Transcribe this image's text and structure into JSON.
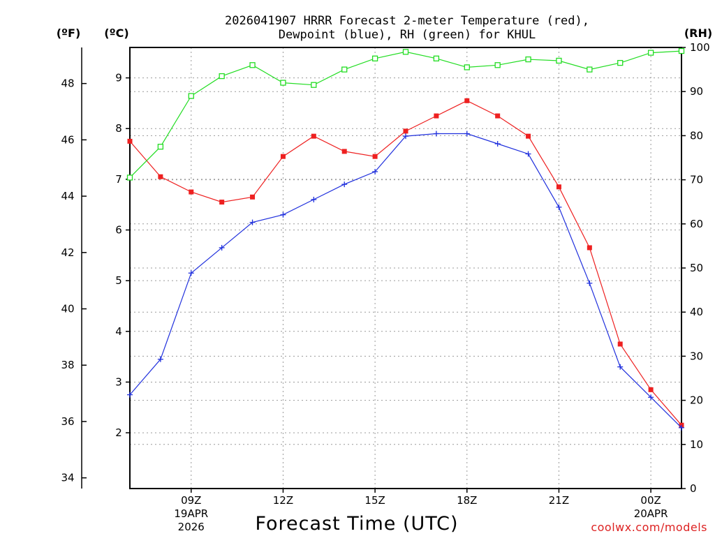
{
  "chart_data": {
    "type": "line",
    "title_line1": "2026041907 HRRR Forecast 2-meter Temperature (red),",
    "title_line2": "Dewpoint (blue), RH (green) for KHUL",
    "xlabel": "Forecast Time (UTC)",
    "credit": "coolwx.com/models",
    "left_outer_unit": "(ºF)",
    "left_inner_unit": "(ºC)",
    "right_unit": "(RH)",
    "x_hours": [
      7,
      8,
      9,
      10,
      11,
      12,
      13,
      14,
      15,
      16,
      17,
      18,
      19,
      20,
      21,
      22,
      23,
      24,
      25
    ],
    "x_ticks": [
      {
        "hour": 9,
        "label": "09Z",
        "sub1": "19APR",
        "sub2": "2026"
      },
      {
        "hour": 12,
        "label": "12Z"
      },
      {
        "hour": 15,
        "label": "15Z"
      },
      {
        "hour": 18,
        "label": "18Z"
      },
      {
        "hour": 21,
        "label": "21Z"
      },
      {
        "hour": 24,
        "label": "00Z",
        "sub1": "20APR"
      }
    ],
    "xlim": [
      7,
      25
    ],
    "ylim_c": [
      0.9,
      9.6
    ],
    "ylim_rh": [
      0,
      100
    ],
    "yticks_c": [
      2,
      3,
      4,
      5,
      6,
      7,
      8,
      9
    ],
    "yticks_f": [
      34,
      36,
      38,
      40,
      42,
      44,
      46,
      48
    ],
    "yticks_rh": [
      0,
      10,
      20,
      30,
      40,
      50,
      60,
      70,
      80,
      90,
      100
    ],
    "colors": {
      "temperature": "#ee2020",
      "dewpoint": "#2030dd",
      "rh": "#22dd22",
      "grid": "#999999"
    },
    "series": [
      {
        "name": "Temperature",
        "unit": "C",
        "values": [
          7.75,
          7.05,
          6.75,
          6.55,
          6.65,
          7.45,
          7.85,
          7.55,
          7.45,
          7.95,
          8.25,
          8.55,
          8.25,
          7.85,
          6.85,
          5.65,
          3.75,
          2.85,
          2.15
        ]
      },
      {
        "name": "Dewpoint",
        "unit": "C",
        "values": [
          2.75,
          3.45,
          5.15,
          5.65,
          6.15,
          6.3,
          6.6,
          6.9,
          7.15,
          7.85,
          7.9,
          7.9,
          7.7,
          7.5,
          6.45,
          4.95,
          3.3,
          2.7,
          2.1
        ]
      },
      {
        "name": "RH",
        "unit": "%",
        "values": [
          70.5,
          77.5,
          89,
          93.5,
          96,
          92,
          91.5,
          95,
          97.5,
          99,
          97.5,
          95.5,
          96,
          97.3,
          97,
          95,
          96.5,
          98.8,
          99.2
        ]
      }
    ]
  }
}
